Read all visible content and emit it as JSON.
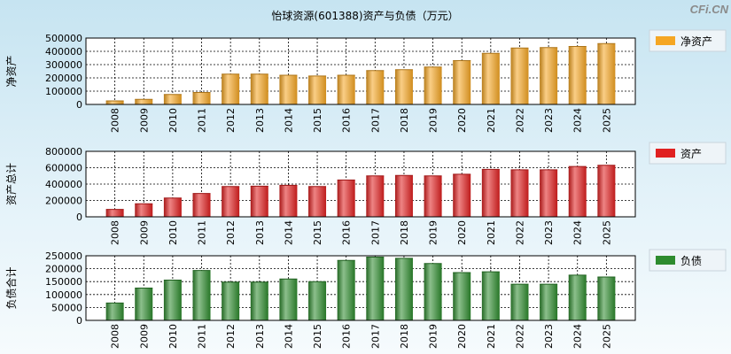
{
  "title": "怡球资源(601388)资产与负债（万元）",
  "watermark": "CFi.CN",
  "chart_data": [
    {
      "type": "bar",
      "ylabel": "净资产",
      "legend": "净资产",
      "color": "#f5a623",
      "ylim": [
        0,
        500000
      ],
      "yticks": [
        0,
        100000,
        200000,
        300000,
        400000,
        500000
      ],
      "ytick_labels": [
        "0",
        "100000",
        "200000",
        "300000",
        "400000",
        "500000"
      ],
      "categories": [
        "2008",
        "2009",
        "2010",
        "2011",
        "2012",
        "2013",
        "2014",
        "2015",
        "2016",
        "2017",
        "2018",
        "2019",
        "2020",
        "2021",
        "2022",
        "2023",
        "2024",
        "2025"
      ],
      "values": [
        27000,
        38000,
        75000,
        90000,
        228000,
        228000,
        220000,
        214000,
        220000,
        255000,
        262000,
        282000,
        330000,
        385000,
        425000,
        428000,
        437000,
        458000
      ]
    },
    {
      "type": "bar",
      "ylabel": "资产总计",
      "legend": "资产",
      "color": "#e02020",
      "ylim": [
        0,
        800000
      ],
      "yticks": [
        0,
        200000,
        400000,
        600000,
        800000
      ],
      "ytick_labels": [
        "0",
        "200000",
        "400000",
        "600000",
        "800000"
      ],
      "categories": [
        "2008",
        "2009",
        "2010",
        "2011",
        "2012",
        "2013",
        "2014",
        "2015",
        "2016",
        "2017",
        "2018",
        "2019",
        "2020",
        "2021",
        "2022",
        "2023",
        "2024",
        "2025"
      ],
      "values": [
        90000,
        160000,
        230000,
        285000,
        370000,
        375000,
        385000,
        370000,
        450000,
        500000,
        505000,
        500000,
        520000,
        580000,
        575000,
        575000,
        615000,
        630000
      ]
    },
    {
      "type": "bar",
      "ylabel": "负债合计",
      "legend": "负债",
      "color": "#2e8b2e",
      "ylim": [
        0,
        250000
      ],
      "yticks": [
        0,
        50000,
        100000,
        150000,
        200000,
        250000
      ],
      "ytick_labels": [
        "0",
        "50000",
        "100000",
        "150000",
        "200000",
        "250000"
      ],
      "categories": [
        "2008",
        "2009",
        "2010",
        "2011",
        "2012",
        "2013",
        "2014",
        "2015",
        "2016",
        "2017",
        "2018",
        "2019",
        "2020",
        "2021",
        "2022",
        "2023",
        "2024",
        "2025"
      ],
      "values": [
        67000,
        125000,
        156000,
        193000,
        148000,
        148000,
        160000,
        150000,
        232000,
        245000,
        240000,
        220000,
        185000,
        188000,
        140000,
        140000,
        175000,
        168000
      ]
    }
  ]
}
